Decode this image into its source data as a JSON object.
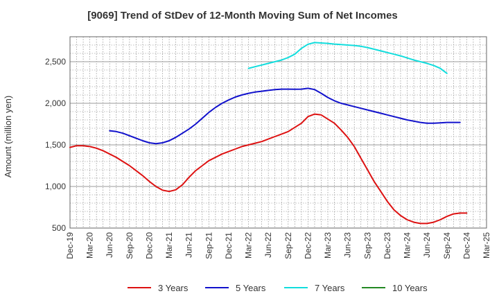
{
  "chart_data": {
    "type": "line",
    "title": "[9069]  Trend of StDev of 12-Month Moving Sum of Net Incomes",
    "ylabel": "Amount (million yen)",
    "xlabel": "",
    "ylim": [
      500,
      2800
    ],
    "yticks": [
      500,
      1000,
      1500,
      2000,
      2500
    ],
    "ytick_labels": [
      "500",
      "1,000",
      "1,500",
      "2,000",
      "2,500"
    ],
    "xticks": [
      "Dec-19",
      "Mar-20",
      "Jun-20",
      "Sep-20",
      "Dec-20",
      "Mar-21",
      "Jun-21",
      "Sep-21",
      "Dec-21",
      "Mar-22",
      "Jun-22",
      "Sep-22",
      "Dec-22",
      "Mar-23",
      "Jun-23",
      "Sep-23",
      "Dec-23",
      "Mar-24",
      "Jun-24",
      "Sep-24",
      "Dec-24",
      "Mar-25"
    ],
    "grid": true,
    "legend_position": "bottom",
    "series": [
      {
        "name": "3 Years",
        "color": "#dd1111",
        "start_index": 0,
        "values": [
          1470,
          1490,
          1490,
          1480,
          1460,
          1430,
          1390,
          1350,
          1300,
          1250,
          1190,
          1130,
          1060,
          1000,
          955,
          940,
          960,
          1020,
          1110,
          1190,
          1250,
          1310,
          1350,
          1390,
          1420,
          1450,
          1480,
          1500,
          1520,
          1540,
          1570,
          1600,
          1630,
          1660,
          1710,
          1760,
          1840,
          1870,
          1860,
          1810,
          1760,
          1680,
          1590,
          1480,
          1340,
          1200,
          1060,
          940,
          820,
          720,
          650,
          600,
          570,
          555,
          555,
          570,
          600,
          640,
          670,
          680,
          680
        ]
      },
      {
        "name": "5 Years",
        "color": "#1111cc",
        "start_index": 6,
        "values": [
          1670,
          1660,
          1640,
          1610,
          1580,
          1550,
          1525,
          1515,
          1525,
          1550,
          1590,
          1640,
          1690,
          1750,
          1820,
          1890,
          1950,
          2000,
          2040,
          2075,
          2100,
          2120,
          2135,
          2145,
          2155,
          2165,
          2170,
          2170,
          2168,
          2170,
          2180,
          2165,
          2120,
          2070,
          2030,
          2000,
          1980,
          1960,
          1940,
          1920,
          1900,
          1880,
          1860,
          1840,
          1820,
          1800,
          1785,
          1770,
          1760,
          1760,
          1765,
          1770,
          1770,
          1770
        ]
      },
      {
        "name": "7 Years",
        "color": "#11dddd",
        "start_index": 27,
        "values": [
          2420,
          2440,
          2460,
          2480,
          2500,
          2520,
          2550,
          2590,
          2660,
          2710,
          2730,
          2725,
          2720,
          2712,
          2706,
          2700,
          2695,
          2685,
          2670,
          2650,
          2630,
          2610,
          2590,
          2570,
          2545,
          2520,
          2500,
          2480,
          2455,
          2420,
          2360
        ]
      },
      {
        "name": "10 Years",
        "color": "#228822",
        "start_index": 0,
        "values": []
      }
    ]
  }
}
